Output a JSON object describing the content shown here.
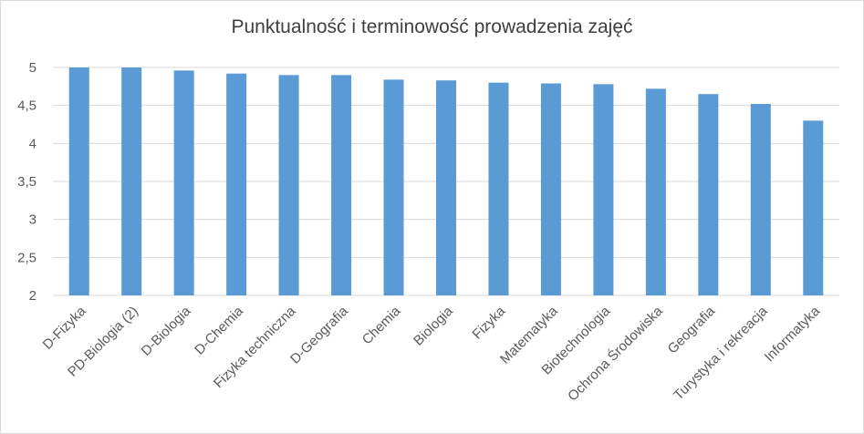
{
  "chart_data": {
    "type": "bar",
    "title": "Punktualność i terminowość prowadzenia zajęć",
    "xlabel": "",
    "ylabel": "",
    "categories": [
      "D-Fizyka",
      "PD-Biologia (2)",
      "D-Biologia",
      "D-Chemia",
      "Fizyka techniczna",
      "D-Geografia",
      "Chemia",
      "Biologia",
      "Fizyka",
      "Matematyka",
      "Biotechnologia",
      "Ochrona Środowiska",
      "Geografia",
      "Turystyka i rekreacja",
      "Informatyka"
    ],
    "values": [
      5.0,
      5.0,
      4.96,
      4.92,
      4.9,
      4.9,
      4.84,
      4.83,
      4.8,
      4.79,
      4.78,
      4.72,
      4.65,
      4.52,
      4.3
    ],
    "ylim": [
      2,
      5
    ],
    "yticks": [
      "2",
      "2,5",
      "3",
      "3,5",
      "4",
      "4,5",
      "5"
    ],
    "grid": true,
    "legend": "none",
    "bar_color": "#5b9bd5",
    "grid_color": "#d9d9d9"
  }
}
